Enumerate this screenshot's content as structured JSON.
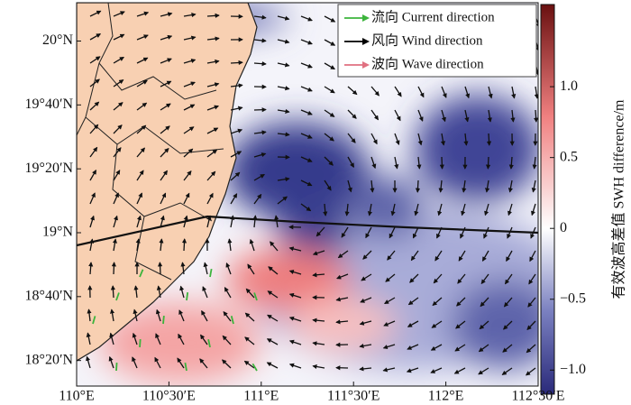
{
  "chart_data": {
    "type": "map",
    "xlim": [
      110,
      112.5
    ],
    "ylim": [
      18.2,
      20.2
    ],
    "xticks": [
      {
        "value": 110,
        "label": "110°E"
      },
      {
        "value": 110.5,
        "label": "110°30′E"
      },
      {
        "value": 111,
        "label": "111°E"
      },
      {
        "value": 111.5,
        "label": "111°30′E"
      },
      {
        "value": 112,
        "label": "112°E"
      },
      {
        "value": 112.5,
        "label": "112°30′E"
      }
    ],
    "yticks": [
      {
        "value": 18.3333,
        "label": "18°20′N"
      },
      {
        "value": 18.6667,
        "label": "18°40′N"
      },
      {
        "value": 19,
        "label": "19°N"
      },
      {
        "value": 19.3333,
        "label": "19°20′N"
      },
      {
        "value": 19.6667,
        "label": "19°40′N"
      },
      {
        "value": 20,
        "label": "20°N"
      }
    ],
    "legend": [
      {
        "name": "流向 Current direction",
        "color": "#3cb43c"
      },
      {
        "name": "风向 Wind direction",
        "color": "#000000"
      },
      {
        "name": "波向 Wave direction",
        "color": "#e07080"
      }
    ],
    "colorbar": {
      "label": "有效波高差值 SWH difference/m",
      "lim": [
        -1.17,
        1.58
      ],
      "colors": [
        "#2a2a7a",
        "#7a80c0",
        "#ffffff",
        "#f08080",
        "#6a1010"
      ],
      "ticks": [
        {
          "value": 1,
          "label": "1.0"
        },
        0.5,
        0,
        {
          "value": -0.5,
          "label": "−0.5"
        },
        {
          "value": -1,
          "label": "−1.0"
        }
      ]
    }
  }
}
